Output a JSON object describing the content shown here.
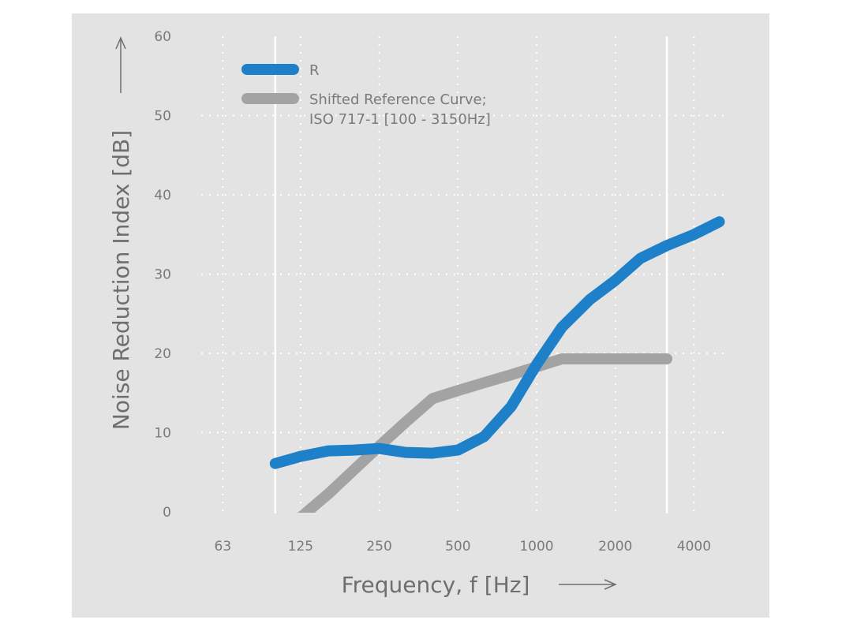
{
  "chart_data": {
    "type": "line",
    "xlabel": "Frequency, f [Hz]",
    "ylabel": "Noise Reduction Index [dB]",
    "x_scale": "log",
    "ylim": [
      0,
      60
    ],
    "yticks": [
      0,
      10,
      20,
      30,
      40,
      50,
      60
    ],
    "xticks": [
      63,
      125,
      250,
      500,
      1000,
      2000,
      4000
    ],
    "xtick_labels": [
      "63",
      "125",
      "250",
      "500",
      "1000",
      "2000",
      "4000"
    ],
    "reference_lines_x": [
      100,
      3150
    ],
    "grid": true,
    "legend_position": "top-left",
    "series": [
      {
        "name": "R",
        "color": "#1e80c8",
        "x": [
          100,
          125,
          160,
          200,
          250,
          315,
          400,
          500,
          630,
          800,
          1000,
          1250,
          1600,
          2000,
          2500,
          3150,
          4000,
          5000
        ],
        "y": [
          6.1,
          7.0,
          7.7,
          7.8,
          8.0,
          7.5,
          7.4,
          7.8,
          9.5,
          13.3,
          18.6,
          23.3,
          26.8,
          29.2,
          32.0,
          33.6,
          35.0,
          36.6
        ]
      },
      {
        "name": "Shifted Reference Curve;",
        "name_line2": "ISO 717-1 [100 - 3150Hz]",
        "color": "#a3a3a3",
        "x": [
          100,
          125,
          160,
          200,
          250,
          315,
          400,
          500,
          630,
          800,
          1000,
          1250,
          1600,
          2000,
          2500,
          3150
        ],
        "y": [
          -3.7,
          -0.7,
          2.3,
          5.3,
          8.3,
          11.3,
          14.3,
          15.3,
          16.3,
          17.3,
          18.3,
          19.3,
          19.3,
          19.3,
          19.3,
          19.3
        ]
      }
    ]
  }
}
